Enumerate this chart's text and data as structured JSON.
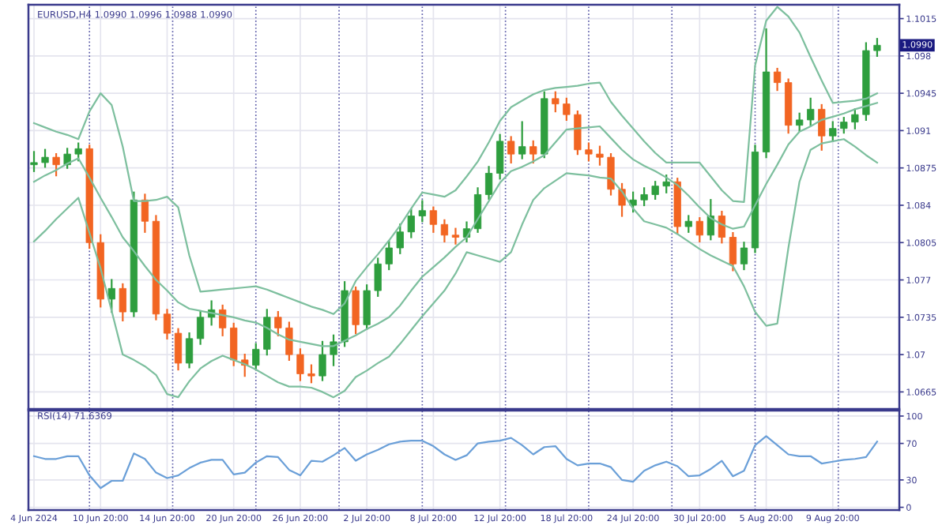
{
  "chart_data": [
    {
      "type": "candlestick",
      "title": "EURUSD,H4 1.0990 1.0996 1.0988 1.0990",
      "ohlc": [
        [
          1.0878,
          1.089,
          1.0872,
          1.088
        ],
        [
          1.088,
          1.0892,
          1.0876,
          1.0885
        ],
        [
          1.0885,
          1.0888,
          1.0868,
          1.0878
        ],
        [
          1.0878,
          1.0893,
          1.0875,
          1.0888
        ],
        [
          1.0888,
          1.0898,
          1.0882,
          1.0893
        ],
        [
          1.0893,
          1.0896,
          1.08,
          1.0805
        ],
        [
          1.0805,
          1.0812,
          1.0745,
          1.0752
        ],
        [
          1.0752,
          1.077,
          1.074,
          1.0762
        ],
        [
          1.0762,
          1.0766,
          1.0732,
          1.074
        ],
        [
          1.074,
          1.0852,
          1.0736,
          1.0845
        ],
        [
          1.0845,
          1.085,
          1.0815,
          1.0825
        ],
        [
          1.0825,
          1.083,
          1.0733,
          1.0738
        ],
        [
          1.0738,
          1.0742,
          1.0715,
          1.072
        ],
        [
          1.072,
          1.0724,
          1.0686,
          1.0692
        ],
        [
          1.0692,
          1.072,
          1.0688,
          1.0715
        ],
        [
          1.0715,
          1.074,
          1.071,
          1.0735
        ],
        [
          1.0735,
          1.075,
          1.0728,
          1.0742
        ],
        [
          1.0742,
          1.0746,
          1.0718,
          1.0725
        ],
        [
          1.0725,
          1.0729,
          1.069,
          1.0695
        ],
        [
          1.0695,
          1.07,
          1.068,
          1.069
        ],
        [
          1.069,
          1.071,
          1.0686,
          1.0705
        ],
        [
          1.0705,
          1.0742,
          1.07,
          1.0735
        ],
        [
          1.0735,
          1.074,
          1.0718,
          1.0725
        ],
        [
          1.0725,
          1.073,
          1.0695,
          1.07
        ],
        [
          1.07,
          1.0705,
          1.0676,
          1.0682
        ],
        [
          1.0682,
          1.069,
          1.0674,
          1.068
        ],
        [
          1.068,
          1.0712,
          1.0676,
          1.07
        ],
        [
          1.07,
          1.0718,
          1.069,
          1.0712
        ],
        [
          1.0712,
          1.0768,
          1.0708,
          1.076
        ],
        [
          1.076,
          1.0763,
          1.072,
          1.0728
        ],
        [
          1.0728,
          1.0765,
          1.0724,
          1.076
        ],
        [
          1.076,
          1.079,
          1.0755,
          1.0785
        ],
        [
          1.0785,
          1.0806,
          1.078,
          1.08
        ],
        [
          1.08,
          1.0822,
          1.0795,
          1.0815
        ],
        [
          1.0815,
          1.0836,
          1.081,
          1.083
        ],
        [
          1.083,
          1.0844,
          1.0825,
          1.0835
        ],
        [
          1.0835,
          1.0838,
          1.0815,
          1.0822
        ],
        [
          1.0822,
          1.0826,
          1.0806,
          1.0812
        ],
        [
          1.0812,
          1.0818,
          1.0804,
          1.081
        ],
        [
          1.081,
          1.0824,
          1.0806,
          1.0818
        ],
        [
          1.0818,
          1.0856,
          1.0815,
          1.085
        ],
        [
          1.085,
          1.0876,
          1.0846,
          1.087
        ],
        [
          1.087,
          1.0906,
          1.0865,
          1.09
        ],
        [
          1.09,
          1.0904,
          1.088,
          1.0888
        ],
        [
          1.0888,
          1.0918,
          1.0884,
          1.0895
        ],
        [
          1.0895,
          1.09,
          1.088,
          1.0888
        ],
        [
          1.0888,
          1.0946,
          1.0885,
          1.094
        ],
        [
          1.094,
          1.0946,
          1.0928,
          1.0935
        ],
        [
          1.0935,
          1.094,
          1.092,
          1.0925
        ],
        [
          1.0925,
          1.0928,
          1.0888,
          1.0892
        ],
        [
          1.0892,
          1.0898,
          1.0882,
          1.0888
        ],
        [
          1.0888,
          1.0895,
          1.0878,
          1.0885
        ],
        [
          1.0885,
          1.0888,
          1.085,
          1.0855
        ],
        [
          1.0855,
          1.086,
          1.083,
          1.084
        ],
        [
          1.084,
          1.0852,
          1.0834,
          1.0845
        ],
        [
          1.0845,
          1.0856,
          1.084,
          1.085
        ],
        [
          1.085,
          1.0862,
          1.0846,
          1.0858
        ],
        [
          1.0858,
          1.0868,
          1.0852,
          1.0862
        ],
        [
          1.0862,
          1.0865,
          1.0814,
          1.082
        ],
        [
          1.082,
          1.083,
          1.0815,
          1.0825
        ],
        [
          1.0825,
          1.0828,
          1.0806,
          1.0812
        ],
        [
          1.0812,
          1.0845,
          1.0808,
          1.083
        ],
        [
          1.083,
          1.0834,
          1.0805,
          1.081
        ],
        [
          1.081,
          1.0814,
          1.0779,
          1.0785
        ],
        [
          1.0785,
          1.0805,
          1.078,
          1.08
        ],
        [
          1.08,
          1.0896,
          1.0796,
          1.089
        ],
        [
          1.089,
          1.1005,
          1.0885,
          1.0965
        ],
        [
          1.0965,
          1.0968,
          1.0948,
          1.0955
        ],
        [
          1.0955,
          1.0958,
          1.0908,
          1.0915
        ],
        [
          1.0915,
          1.0926,
          1.091,
          1.092
        ],
        [
          1.092,
          1.094,
          1.0915,
          1.093
        ],
        [
          1.093,
          1.0934,
          1.0892,
          1.0905
        ],
        [
          1.0905,
          1.0918,
          1.09,
          1.0912
        ],
        [
          1.0912,
          1.0922,
          1.0908,
          1.0918
        ],
        [
          1.0918,
          1.093,
          1.0912,
          1.0925
        ],
        [
          1.0925,
          1.0992,
          1.092,
          1.0985
        ],
        [
          1.0985,
          1.0996,
          1.098,
          1.099
        ]
      ],
      "colors": [
        "#2e9e3e",
        "#2e9e3e",
        "#f26522",
        "#2e9e3e",
        "#2e9e3e",
        "#f26522",
        "#f26522",
        "#2e9e3e",
        "#f26522",
        "#2e9e3e",
        "#f26522",
        "#f26522",
        "#f26522",
        "#f26522",
        "#2e9e3e",
        "#2e9e3e",
        "#2e9e3e",
        "#f26522",
        "#f26522",
        "#f26522",
        "#2e9e3e",
        "#2e9e3e",
        "#f26522",
        "#f26522",
        "#f26522",
        "#f26522",
        "#2e9e3e",
        "#2e9e3e",
        "#2e9e3e",
        "#f26522",
        "#2e9e3e",
        "#2e9e3e",
        "#2e9e3e",
        "#2e9e3e",
        "#2e9e3e",
        "#2e9e3e",
        "#f26522",
        "#f26522",
        "#f26522",
        "#2e9e3e",
        "#2e9e3e",
        "#2e9e3e",
        "#2e9e3e",
        "#f26522",
        "#2e9e3e",
        "#f26522",
        "#2e9e3e",
        "#f26522",
        "#f26522",
        "#f26522",
        "#f26522",
        "#f26522",
        "#f26522",
        "#f26522",
        "#2e9e3e",
        "#2e9e3e",
        "#2e9e3e",
        "#2e9e3e",
        "#f26522",
        "#2e9e3e",
        "#f26522",
        "#2e9e3e",
        "#f26522",
        "#f26522",
        "#2e9e3e",
        "#2e9e3e",
        "#2e9e3e",
        "#f26522",
        "#f26522",
        "#2e9e3e",
        "#2e9e3e",
        "#f26522",
        "#2e9e3e",
        "#2e9e3e",
        "#2e9e3e",
        "#2e9e3e",
        "#2e9e3e"
      ],
      "series": [
        {
          "type": "line",
          "color": "#7dbf9e",
          "values": [
            1.0917,
            1.0913,
            1.0909,
            1.0906,
            1.0902,
            1.0928,
            1.0945,
            1.0934,
            1.0895,
            1.0844,
            1.0844,
            1.0845,
            1.0848,
            1.0838,
            1.0793,
            1.0759,
            1.076,
            1.0761,
            1.0762,
            1.0763,
            1.0764,
            1.0761,
            1.0757,
            1.0753,
            1.0749,
            1.0745,
            1.0742,
            1.0738,
            1.0748,
            1.0769,
            1.0782,
            1.0794,
            1.0807,
            1.0821,
            1.0837,
            1.0852,
            1.085,
            1.0848,
            1.0854,
            1.0867,
            1.0881,
            1.0899,
            1.0919,
            1.0932,
            1.0938,
            1.0944,
            1.0948,
            1.095,
            1.0951,
            1.0952,
            1.0954,
            1.0955,
            1.0937,
            1.0924,
            1.0912,
            1.09,
            1.0889,
            1.088,
            1.088,
            1.088,
            1.088,
            1.0867,
            1.0854,
            1.0844,
            1.0843,
            1.0971,
            1.1013,
            1.1026,
            1.1017,
            1.1002,
            1.0979,
            1.0957,
            1.0936,
            1.0937,
            1.0938,
            1.094,
            1.0945
          ]
        },
        {
          "type": "line",
          "color": "#7dbf9e",
          "values": [
            1.0862,
            1.0868,
            1.0873,
            1.0879,
            1.0884,
            1.0866,
            1.0847,
            1.0829,
            1.081,
            1.0797,
            1.0783,
            1.077,
            1.076,
            1.0749,
            1.0743,
            1.0741,
            1.0739,
            1.0737,
            1.0735,
            1.0732,
            1.073,
            1.0725,
            1.0719,
            1.0714,
            1.0712,
            1.071,
            1.0708,
            1.0708,
            1.0713,
            1.0718,
            1.0724,
            1.0729,
            1.0735,
            1.0746,
            1.076,
            1.0773,
            1.0782,
            1.0791,
            1.0801,
            1.081,
            1.0827,
            1.0844,
            1.0861,
            1.0872,
            1.0876,
            1.0881,
            1.0887,
            1.0899,
            1.0911,
            1.0912,
            1.0913,
            1.0914,
            1.0903,
            1.0892,
            1.0883,
            1.0877,
            1.0872,
            1.0866,
            1.0859,
            1.0849,
            1.0838,
            1.0828,
            1.0822,
            1.0818,
            1.082,
            1.084,
            1.086,
            1.0878,
            1.0897,
            1.0909,
            1.0914,
            1.092,
            1.0923,
            1.0926,
            1.093,
            1.0933,
            1.0936
          ]
        },
        {
          "type": "line",
          "color": "#7dbf9e",
          "values": [
            1.0806,
            1.0816,
            1.0827,
            1.0837,
            1.0847,
            1.0814,
            1.0781,
            1.0741,
            1.07,
            1.0695,
            1.0689,
            1.0681,
            1.0663,
            1.066,
            1.0675,
            1.0687,
            1.0694,
            1.0699,
            1.0695,
            1.0691,
            1.0686,
            1.068,
            1.0674,
            1.067,
            1.067,
            1.0669,
            1.0665,
            1.066,
            1.0666,
            1.0679,
            1.0685,
            1.0692,
            1.0698,
            1.071,
            1.0723,
            1.0736,
            1.0748,
            1.076,
            1.0776,
            1.0796,
            1.0793,
            1.079,
            1.0787,
            1.0796,
            1.0822,
            1.0845,
            1.0856,
            1.0863,
            1.087,
            1.0869,
            1.0868,
            1.0866,
            1.0865,
            1.0853,
            1.0837,
            1.0825,
            1.0822,
            1.0819,
            1.0813,
            1.0806,
            1.0799,
            1.0793,
            1.0788,
            1.0783,
            1.0764,
            1.074,
            1.0727,
            1.0729,
            1.08,
            1.0862,
            1.0892,
            1.0898,
            1.09,
            1.0902,
            1.0895,
            1.0887,
            1.088
          ]
        }
      ],
      "ylim": [
        1.0649,
        1.1028
      ],
      "yticks": [
        1.0665,
        1.07,
        1.0735,
        1.077,
        1.0805,
        1.084,
        1.0875,
        1.091,
        1.0945,
        1.098,
        1.1015
      ],
      "tick_labels": "y",
      "grid": true,
      "annotations": [
        {
          "text": "1.0990",
          "y": 1.099
        }
      ]
    },
    {
      "type": "line",
      "title": "RSI(14) 71.6369",
      "categories": [
        "4 Jun 2024",
        null,
        null,
        null,
        null,
        null,
        "10 Jun 20:00",
        null,
        null,
        null,
        null,
        null,
        "14 Jun 20:00",
        null,
        null,
        null,
        null,
        null,
        "20 Jun 20:00",
        null,
        null,
        null,
        null,
        null,
        "26 Jun 20:00",
        null,
        null,
        null,
        null,
        null,
        "2 Jul 20:00",
        null,
        null,
        null,
        null,
        null,
        "8 Jul 20:00",
        null,
        null,
        null,
        null,
        null,
        "12 Jul 20:00",
        null,
        null,
        null,
        null,
        null,
        "18 Jul 20:00",
        null,
        null,
        null,
        null,
        null,
        "24 Jul 20:00",
        null,
        null,
        null,
        null,
        null,
        "30 Jul 20:00",
        null,
        null,
        null,
        null,
        null,
        "5 Aug 20:00",
        null,
        null,
        null,
        null,
        null,
        "9 Aug 20:00",
        null,
        null,
        null,
        null
      ],
      "series": [
        {
          "color": "#6a9fd8",
          "values": [
            56,
            53,
            53,
            56,
            56,
            35,
            21,
            29,
            29,
            59,
            53,
            38,
            32,
            35,
            43,
            49,
            52,
            52,
            36,
            38,
            49,
            56,
            55,
            41,
            35,
            51,
            50,
            57,
            65,
            51,
            58,
            63,
            69,
            72,
            73,
            73,
            67,
            58,
            52,
            57,
            70,
            72,
            73,
            76,
            68,
            58,
            66,
            67,
            53,
            46,
            48,
            48,
            44,
            30,
            28,
            40,
            46,
            50,
            45,
            34,
            35,
            42,
            51,
            34,
            40,
            68,
            78,
            68,
            58,
            56,
            56,
            48,
            50,
            52,
            53,
            55,
            72
          ]
        }
      ],
      "ylim": [
        -3,
        106
      ],
      "yticks": [
        0,
        30,
        70,
        100
      ],
      "grid": true
    }
  ]
}
